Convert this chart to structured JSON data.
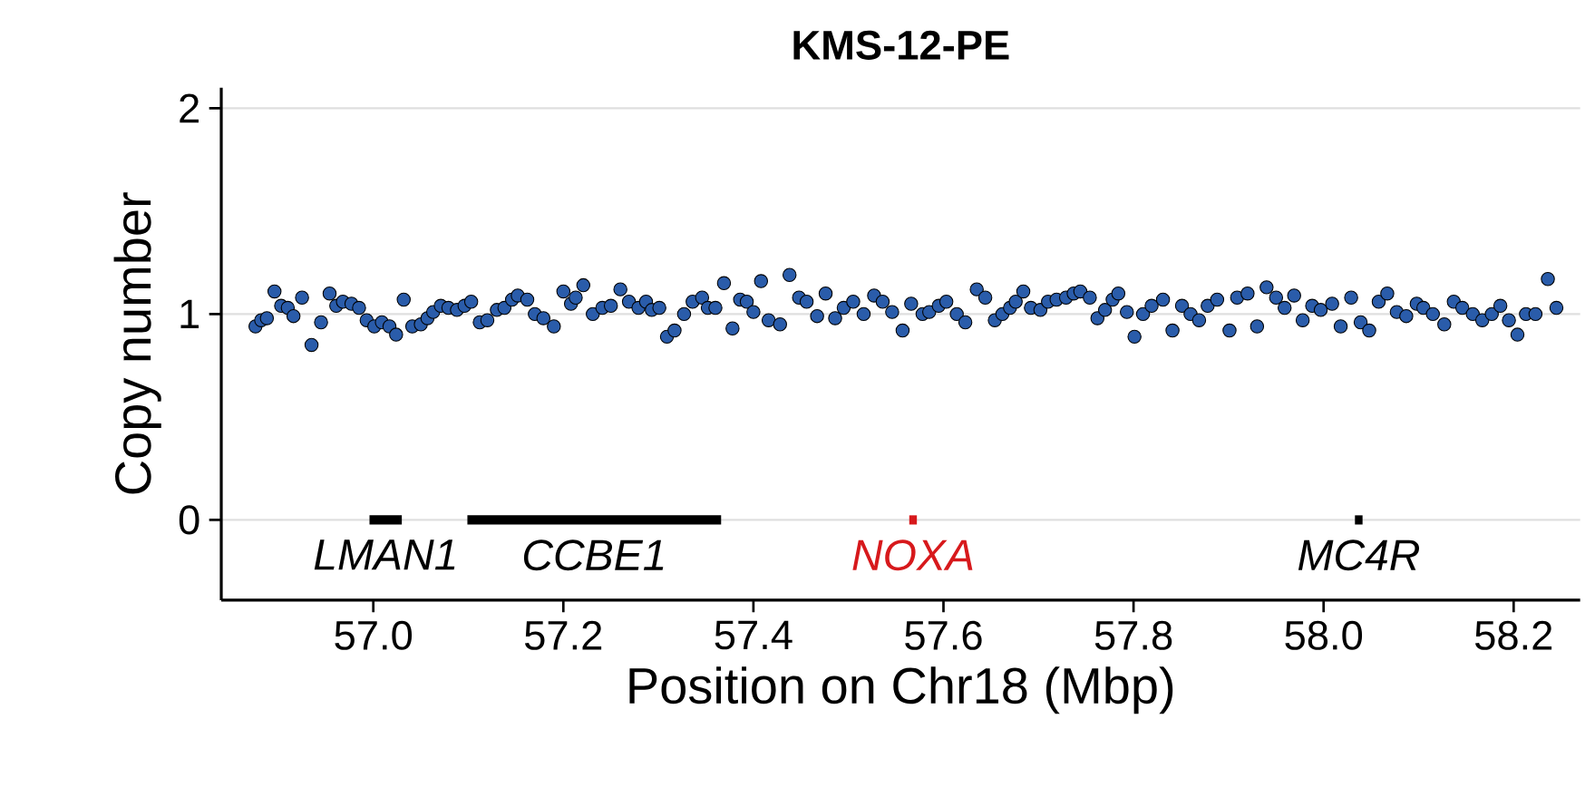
{
  "chart_data": {
    "type": "scatter",
    "title": "KMS-12-PE",
    "xlabel": "Position on Chr18 (Mbp)",
    "ylabel": "Copy number",
    "xlim": [
      56.84,
      58.27
    ],
    "ylim": [
      -0.39,
      2.1
    ],
    "xticks": [
      {
        "value": 57,
        "label": "57.0"
      },
      {
        "value": 57.2,
        "label": "57.2"
      },
      {
        "value": 57.4,
        "label": "57.4"
      },
      {
        "value": 57.6,
        "label": "57.6"
      },
      {
        "value": 57.8,
        "label": "57.8"
      },
      {
        "value": 58,
        "label": "58.0"
      },
      {
        "value": 58.2,
        "label": "58.2"
      }
    ],
    "yticks": [
      0,
      1,
      2
    ],
    "grid": "y",
    "series": [
      {
        "color": "#2a5caa",
        "marker": "circle",
        "x": [
          56.876,
          56.882,
          56.888,
          56.896,
          56.903,
          56.91,
          56.916,
          56.925,
          56.935,
          56.945,
          56.954,
          56.961,
          56.968,
          56.977,
          56.985,
          56.993,
          57.001,
          57.009,
          57.017,
          57.024,
          57.032,
          57.041,
          57.05,
          57.057,
          57.063,
          57.071,
          57.079,
          57.088,
          57.096,
          57.103,
          57.112,
          57.12,
          57.13,
          57.138,
          57.146,
          57.152,
          57.162,
          57.17,
          57.179,
          57.19,
          57.2,
          57.208,
          57.213,
          57.221,
          57.231,
          57.241,
          57.25,
          57.26,
          57.269,
          57.279,
          57.287,
          57.293,
          57.301,
          57.309,
          57.317,
          57.327,
          57.336,
          57.346,
          57.352,
          57.36,
          57.369,
          57.378,
          57.386,
          57.393,
          57.4,
          57.408,
          57.416,
          57.428,
          57.438,
          57.448,
          57.456,
          57.467,
          57.476,
          57.486,
          57.495,
          57.505,
          57.516,
          57.527,
          57.536,
          57.546,
          57.557,
          57.566,
          57.578,
          57.585,
          57.595,
          57.603,
          57.614,
          57.623,
          57.635,
          57.644,
          57.654,
          57.662,
          57.67,
          57.676,
          57.684,
          57.692,
          57.702,
          57.71,
          57.719,
          57.729,
          57.737,
          57.744,
          57.754,
          57.762,
          57.77,
          57.778,
          57.784,
          57.793,
          57.801,
          57.81,
          57.819,
          57.831,
          57.841,
          57.851,
          57.86,
          57.869,
          57.878,
          57.888,
          57.901,
          57.909,
          57.92,
          57.93,
          57.94,
          57.95,
          57.959,
          57.969,
          57.978,
          57.988,
          57.997,
          58.009,
          58.018,
          58.029,
          58.039,
          58.048,
          58.058,
          58.067,
          58.077,
          58.087,
          58.098,
          58.105,
          58.115,
          58.127,
          58.137,
          58.146,
          58.157,
          58.167,
          58.177,
          58.186,
          58.195,
          58.204,
          58.213,
          58.223,
          58.236,
          58.245
        ],
        "values": [
          0.94,
          0.97,
          0.98,
          1.11,
          1.04,
          1.03,
          0.99,
          1.08,
          0.85,
          0.96,
          1.1,
          1.04,
          1.06,
          1.05,
          1.03,
          0.97,
          0.94,
          0.96,
          0.94,
          0.9,
          1.07,
          0.94,
          0.95,
          0.98,
          1.01,
          1.04,
          1.03,
          1.02,
          1.04,
          1.06,
          0.96,
          0.97,
          1.02,
          1.03,
          1.07,
          1.09,
          1.07,
          1.0,
          0.98,
          0.94,
          1.11,
          1.05,
          1.08,
          1.14,
          1.0,
          1.03,
          1.04,
          1.12,
          1.06,
          1.03,
          1.06,
          1.02,
          1.03,
          0.89,
          0.92,
          1.0,
          1.06,
          1.08,
          1.03,
          1.03,
          1.15,
          0.93,
          1.07,
          1.06,
          1.01,
          1.16,
          0.97,
          0.95,
          1.19,
          1.08,
          1.06,
          0.99,
          1.1,
          0.98,
          1.03,
          1.06,
          1.0,
          1.09,
          1.06,
          1.01,
          0.92,
          1.05,
          1.0,
          1.01,
          1.04,
          1.06,
          1.0,
          0.96,
          1.12,
          1.08,
          0.97,
          1.0,
          1.03,
          1.06,
          1.11,
          1.03,
          1.02,
          1.06,
          1.07,
          1.08,
          1.1,
          1.11,
          1.08,
          0.98,
          1.02,
          1.07,
          1.1,
          1.01,
          0.89,
          1.0,
          1.04,
          1.07,
          0.92,
          1.04,
          1.0,
          0.97,
          1.04,
          1.07,
          0.92,
          1.08,
          1.1,
          0.94,
          1.13,
          1.08,
          1.03,
          1.09,
          0.97,
          1.04,
          1.02,
          1.05,
          0.94,
          1.08,
          0.96,
          0.92,
          1.06,
          1.1,
          1.01,
          0.99,
          1.05,
          1.03,
          1.0,
          0.95,
          1.06,
          1.03,
          1.0,
          0.97,
          1.0,
          1.04,
          0.97,
          0.9,
          1.0,
          1.0,
          1.17,
          1.03
        ]
      },
      {
        "type": "line",
        "name": "LMAN1",
        "color": "#000000",
        "marker": "none",
        "x": [
          56.996,
          57.03
        ],
        "values": [
          0,
          0
        ]
      },
      {
        "type": "line",
        "name": "CCBE1",
        "color": "#000000",
        "marker": "none",
        "x": [
          57.099,
          57.366
        ],
        "values": [
          0,
          0
        ]
      },
      {
        "type": "line",
        "name": "NOXA",
        "color": "#d7191c",
        "marker": "none",
        "x": [
          57.564,
          57.572
        ],
        "values": [
          0,
          0
        ]
      },
      {
        "type": "line",
        "name": "MC4R",
        "color": "#000000",
        "marker": "none",
        "x": [
          58.033,
          58.041
        ],
        "values": [
          0,
          0
        ]
      }
    ]
  }
}
